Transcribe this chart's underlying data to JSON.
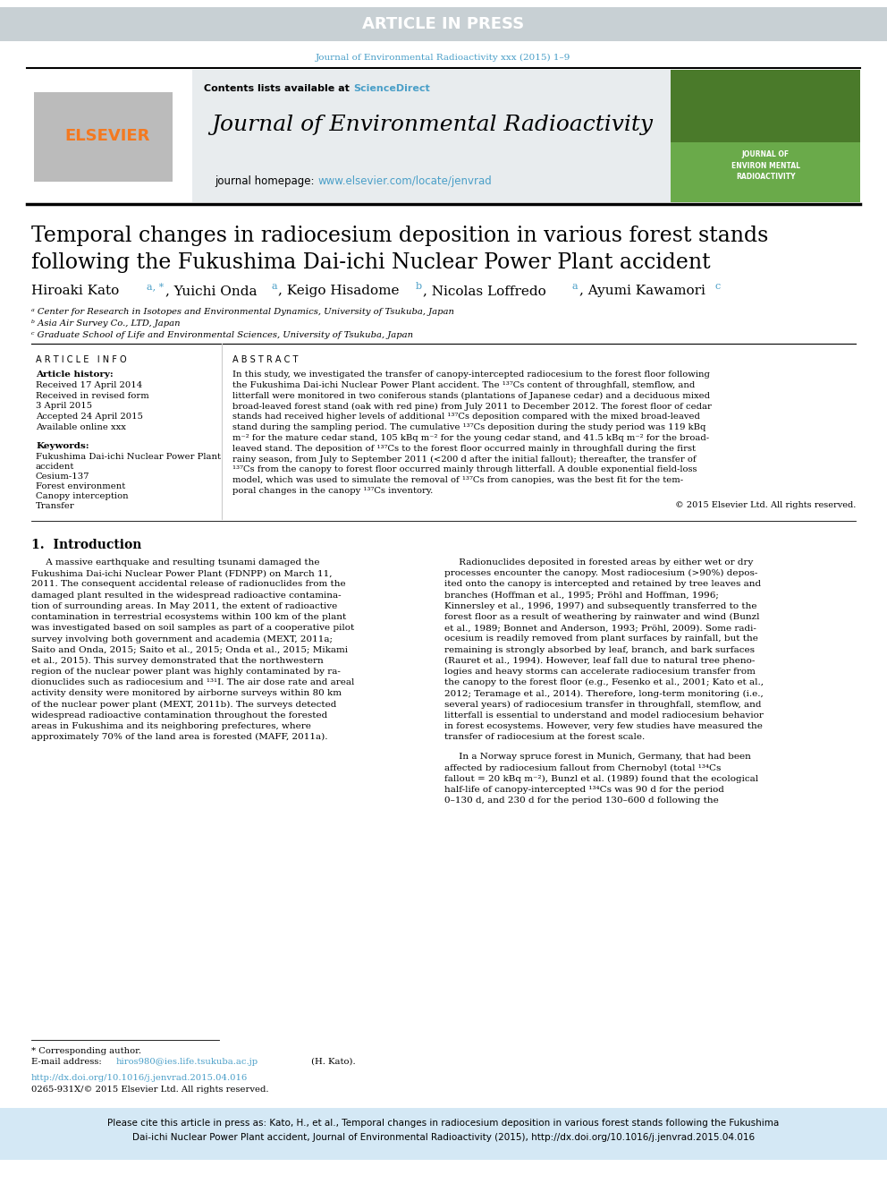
{
  "article_in_press_bg": "#c8d0d4",
  "article_in_press_text": "ARTICLE IN PRESS",
  "journal_ref_text": "Journal of Environmental Radioactivity xxx (2015) 1–9",
  "journal_ref_color": "#4a9fc8",
  "contents_text": "Contents lists available at ",
  "sciencedirect_text": "ScienceDirect",
  "sciencedirect_color": "#4a9fc8",
  "journal_title": "Journal of Environmental Radioactivity",
  "homepage_text": "journal homepage: ",
  "homepage_url": "www.elsevier.com/locate/jenvrad",
  "homepage_url_color": "#4a9fc8",
  "elsevier_color": "#f47920",
  "paper_title_line1": "Temporal changes in radiocesium deposition in various forest stands",
  "paper_title_line2": "following the Fukushima Dai-ichi Nuclear Power Plant accident",
  "affil_a": "ᵃ Center for Research in Isotopes and Environmental Dynamics, University of Tsukuba, Japan",
  "affil_b": "ᵇ Asia Air Survey Co., LTD, Japan",
  "affil_c": "ᶜ Graduate School of Life and Environmental Sciences, University of Tsukuba, Japan",
  "article_info_header": "A R T I C L E   I N F O",
  "abstract_header": "A B S T R A C T",
  "article_history": "Article history:",
  "received_1": "Received 17 April 2014",
  "received_revised": "Received in revised form",
  "received_revised_date": "3 April 2015",
  "accepted": "Accepted 24 April 2015",
  "available": "Available online xxx",
  "keywords_header": "Keywords:",
  "keyword1": "Fukushima Dai-ichi Nuclear Power Plant",
  "keyword2": "accident",
  "keyword3": "Cesium-137",
  "keyword4": "Forest environment",
  "keyword5": "Canopy interception",
  "keyword6": "Transfer",
  "copyright_text": "© 2015 Elsevier Ltd. All rights reserved.",
  "intro_header": "1.  Introduction",
  "doi_text": "http://dx.doi.org/10.1016/j.jenvrad.2015.04.016",
  "issn_text": "0265-931X/© 2015 Elsevier Ltd. All rights reserved.",
  "footnote_text": "* Corresponding author.",
  "cite_bg": "#d4e8f5",
  "journal_header_bg": "#e8ecee",
  "link_color": "#4a9fc8",
  "black": "#000000",
  "white": "#ffffff",
  "gray_light": "#cccccc",
  "green_cover": "#4a7a2a",
  "green_cover2": "#6aaa4a"
}
